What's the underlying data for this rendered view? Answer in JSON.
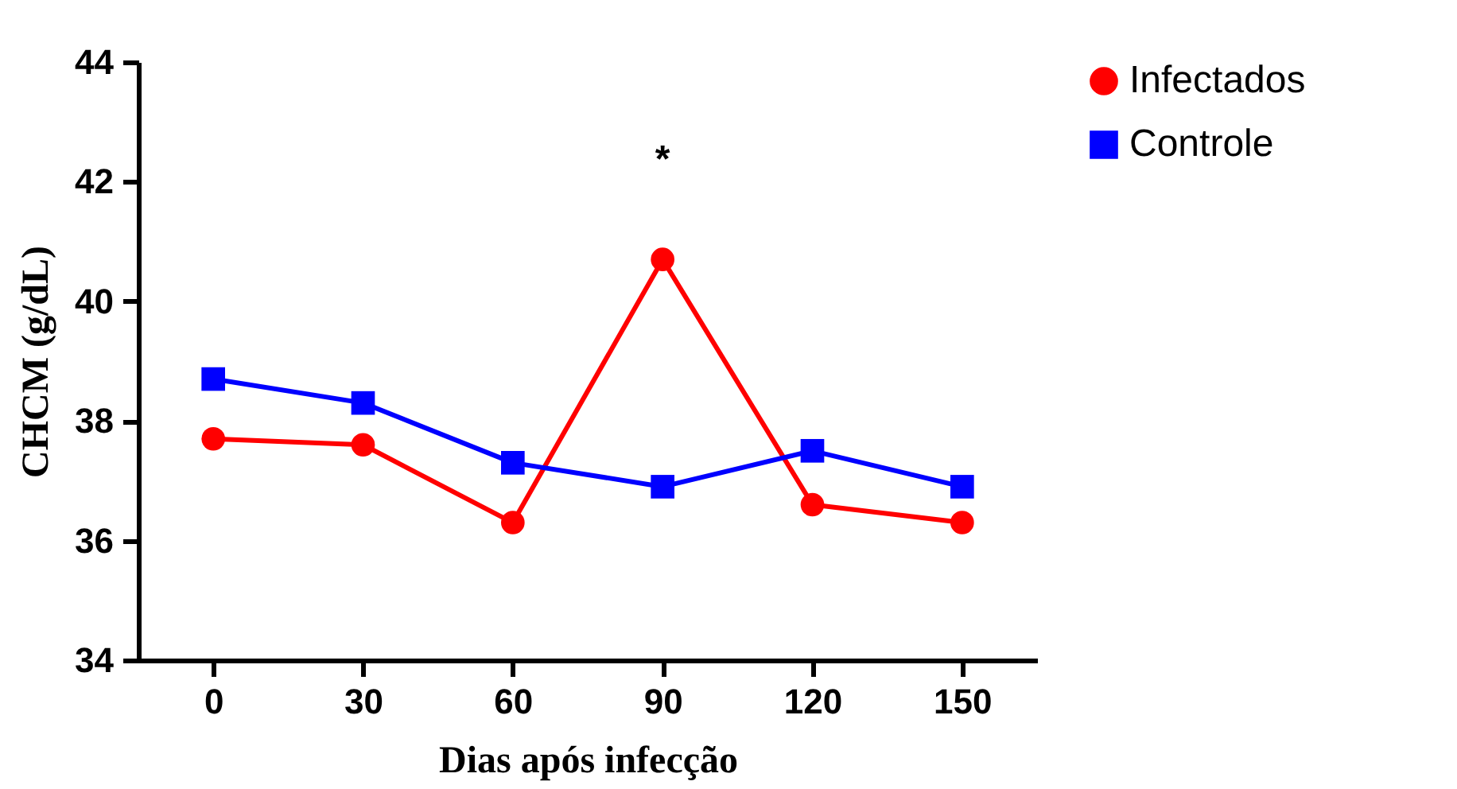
{
  "chart_data": {
    "type": "line",
    "xlabel": "Dias após infecção",
    "ylabel": "CHCM (g/dL)",
    "x": [
      0,
      30,
      60,
      90,
      120,
      150
    ],
    "series": [
      {
        "name": "Infectados",
        "color": "#ff0000",
        "marker": "circle",
        "values": [
          37.7,
          37.6,
          36.3,
          40.7,
          36.6,
          36.3
        ]
      },
      {
        "name": "Controle",
        "color": "#0000ff",
        "marker": "square",
        "values": [
          38.7,
          38.3,
          37.3,
          36.9,
          37.5,
          36.9
        ]
      }
    ],
    "xlim": [
      -15,
      165
    ],
    "xticks": [
      0,
      30,
      60,
      90,
      120,
      150
    ],
    "ylim": [
      34,
      44
    ],
    "yticks": [
      34,
      36,
      38,
      40,
      42,
      44
    ],
    "annotations": [
      "*"
    ],
    "grid": false,
    "legend": "top right",
    "line_style": "solid"
  }
}
